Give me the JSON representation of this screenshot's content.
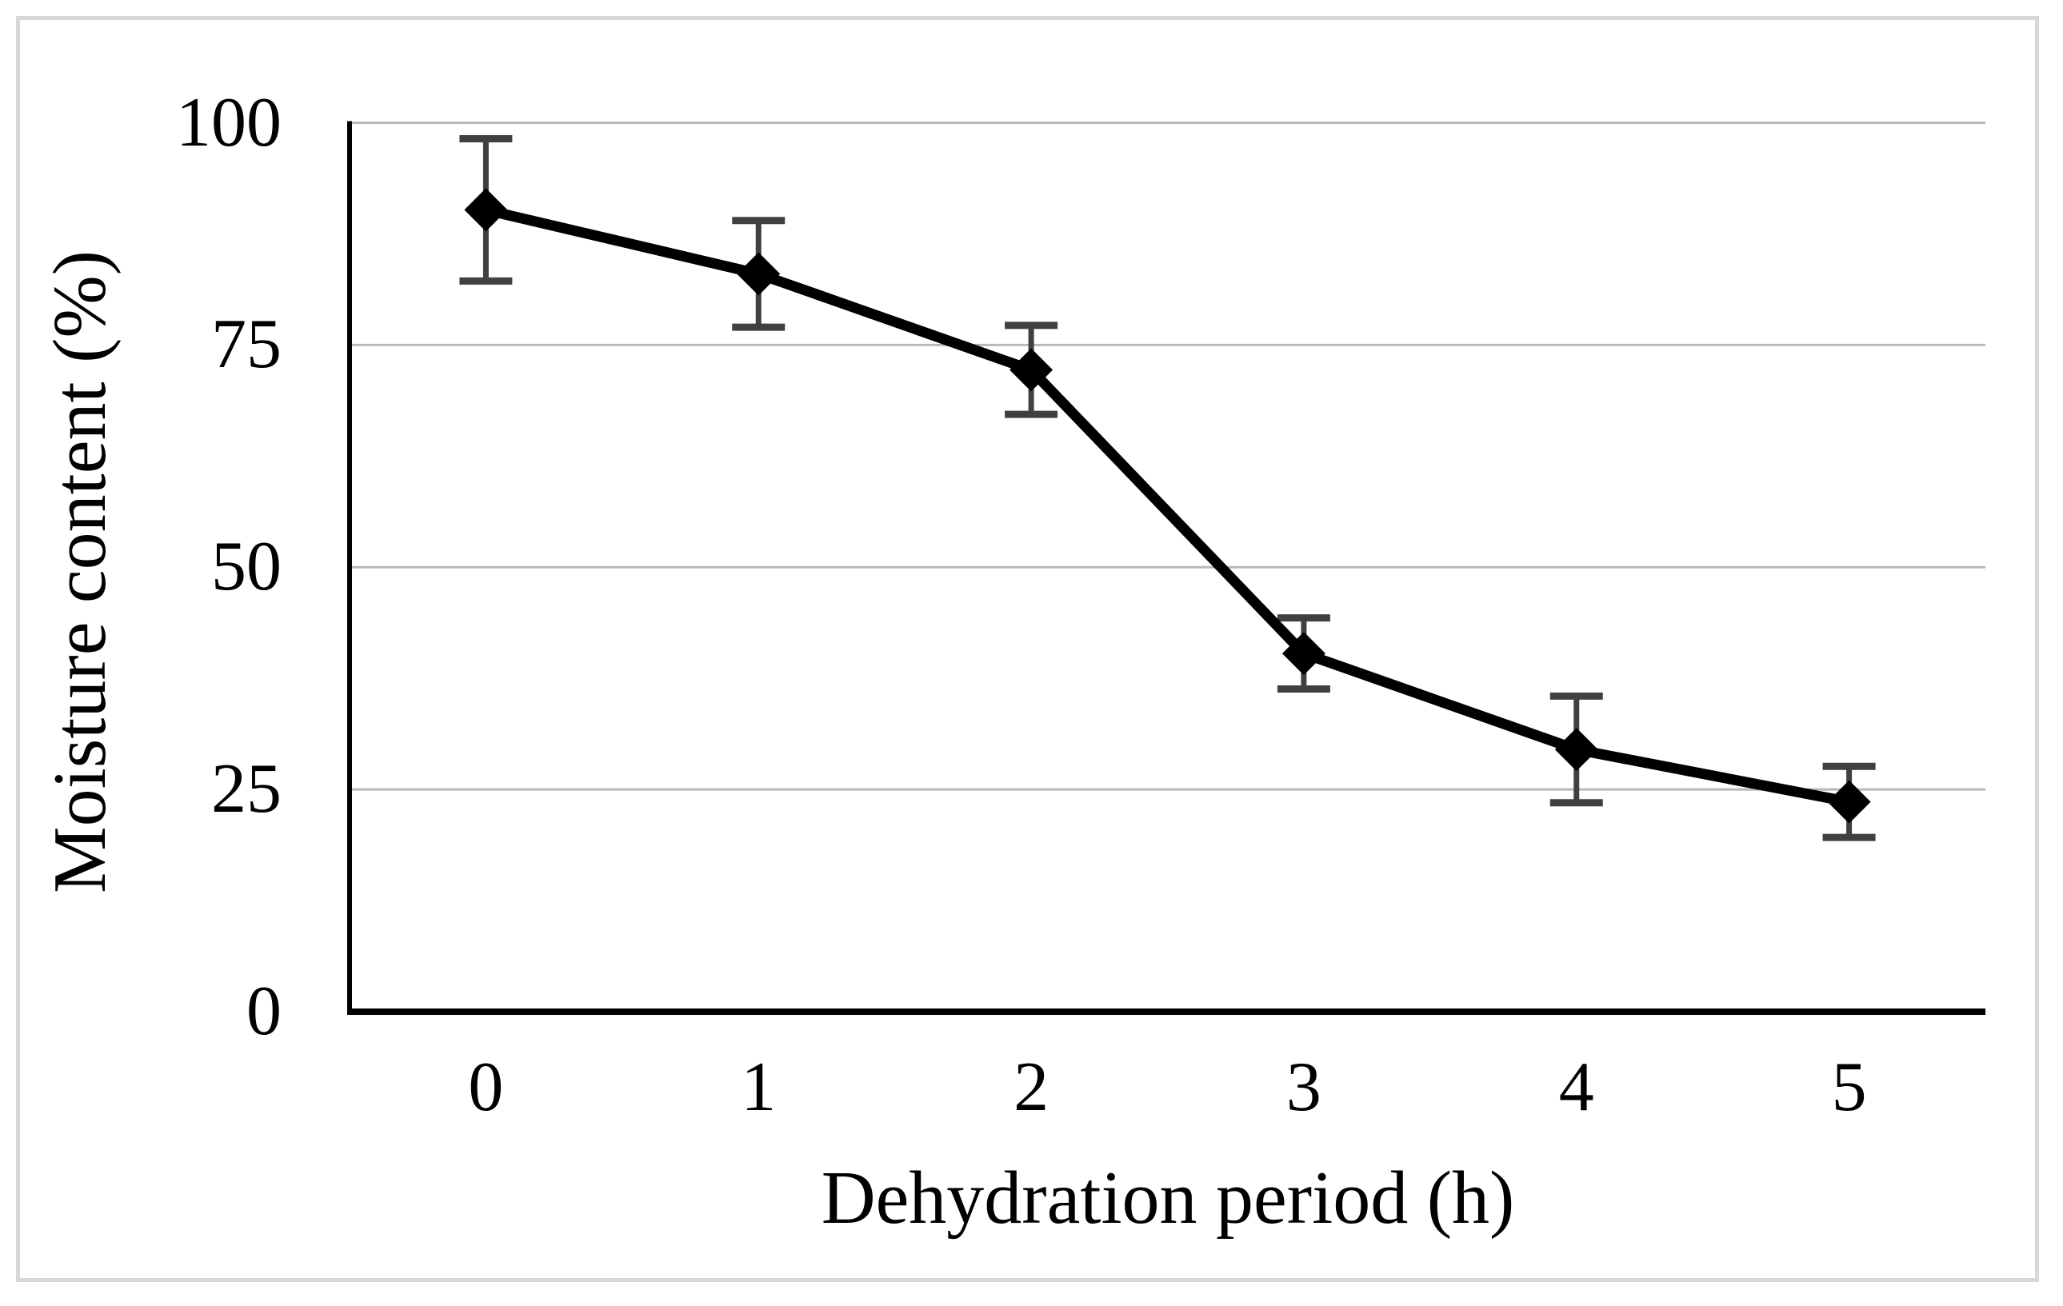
{
  "chart_data": {
    "type": "line",
    "xlabel": "Dehydration period (h)",
    "ylabel": "Moisture content (%)",
    "x_categories": [
      "0",
      "1",
      "2",
      "3",
      "4",
      "5"
    ],
    "values": [
      90.2,
      83.0,
      72.2,
      40.3,
      29.5,
      23.6
    ],
    "error_bars": [
      8,
      6,
      5,
      4,
      6,
      4
    ],
    "y_ticks": [
      100,
      75,
      50,
      25,
      0
    ],
    "ylim": [
      0,
      100
    ],
    "grid": "horizontal-only",
    "legend": "none",
    "marker": "filled-diamond",
    "line_color": "#000000",
    "marker_color": "#000000",
    "error_bar_color": "#404040",
    "gridline_color": "#b8b8b8",
    "axis_color": "#000000",
    "frame_border_color": "#d8d8d8",
    "background_color": "#ffffff"
  }
}
